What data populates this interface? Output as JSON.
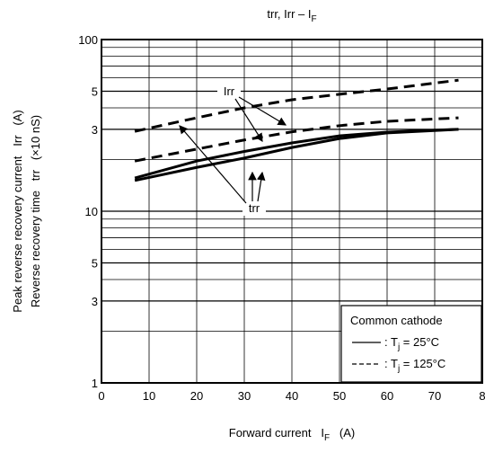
{
  "chart_data": {
    "type": "line",
    "title": [
      "trr, Irr – I",
      "F"
    ],
    "xlabel": [
      "Forward current   I",
      "F",
      "   (A)"
    ],
    "ylabel": [
      "Peak reverse recovery current   Irr   (A)",
      "Reverse recovery time   trr   (×10 nS)"
    ],
    "xlim": [
      0,
      80
    ],
    "xticks": [
      0,
      10,
      20,
      30,
      40,
      50,
      60,
      70,
      {
        "value": 80,
        "label": "8"
      }
    ],
    "ylim": [
      1,
      100
    ],
    "log_y": true,
    "yticks": [
      1,
      3,
      5,
      10,
      {
        "value": 30,
        "label": "3"
      },
      {
        "value": 50,
        "label": "5"
      },
      100
    ],
    "grid": true,
    "x": [
      7,
      20,
      30,
      40,
      50,
      60,
      75
    ],
    "series": [
      {
        "color": "#000",
        "dash": true,
        "values": [
          29.2,
          35,
          40,
          44.6,
          48,
          51.5,
          58
        ]
      },
      {
        "color": "#000",
        "dash": true,
        "values": [
          19.6,
          23,
          26,
          29,
          31.5,
          33.4,
          35
        ]
      },
      {
        "color": "#000",
        "dash": false,
        "values": [
          15.6,
          19.6,
          22.3,
          25,
          27.5,
          28.9,
          30
        ]
      },
      {
        "color": "#000",
        "dash": false,
        "values": [
          15.1,
          18,
          20.4,
          23.5,
          26.5,
          28.6,
          30
        ]
      }
    ],
    "annotations": [
      "Irr",
      "trr"
    ],
    "legend": {
      "title": "Common cathode",
      "position": "lower right",
      "entries": [
        {
          "dash": false,
          "label": [
            ": T",
            "j",
            " = 25°C"
          ]
        },
        {
          "dash": true,
          "label": [
            ": T",
            "j",
            " = 125°C"
          ]
        }
      ]
    }
  }
}
